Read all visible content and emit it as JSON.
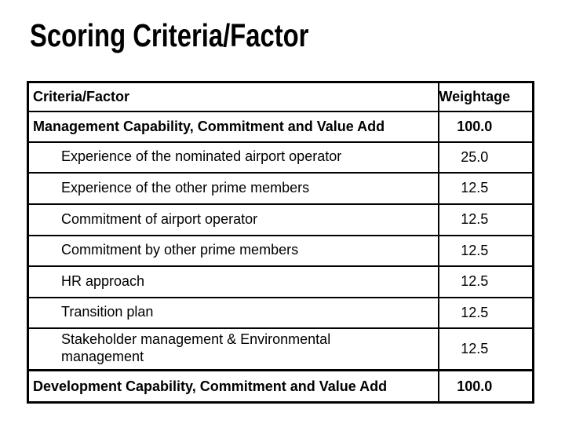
{
  "slide": {
    "title": "Scoring Criteria/Factor"
  },
  "table": {
    "headers": [
      "Criteria/Factor",
      "Weightage"
    ],
    "rows": [
      {
        "label": "Management Capability, Commitment and Value Add",
        "value": "100.0",
        "level": "main"
      },
      {
        "label": "Experience of the nominated airport operator",
        "value": "25.0",
        "level": "sub"
      },
      {
        "label": "Experience of the other prime members",
        "value": "12.5",
        "level": "sub"
      },
      {
        "label": "Commitment of airport operator",
        "value": "12.5",
        "level": "sub"
      },
      {
        "label": "Commitment by other prime members",
        "value": "12.5",
        "level": "sub"
      },
      {
        "label": "HR approach",
        "value": "12.5",
        "level": "sub"
      },
      {
        "label": "Transition plan",
        "value": "12.5",
        "level": "sub"
      },
      {
        "label": "Stakeholder management & Environmental management",
        "value": "12.5",
        "level": "sub"
      },
      {
        "label": "Development Capability, Commitment and Value Add",
        "value": "100.0",
        "level": "main"
      }
    ],
    "colors": {
      "text": "#000000",
      "border": "#000000",
      "background": "#ffffff"
    }
  }
}
